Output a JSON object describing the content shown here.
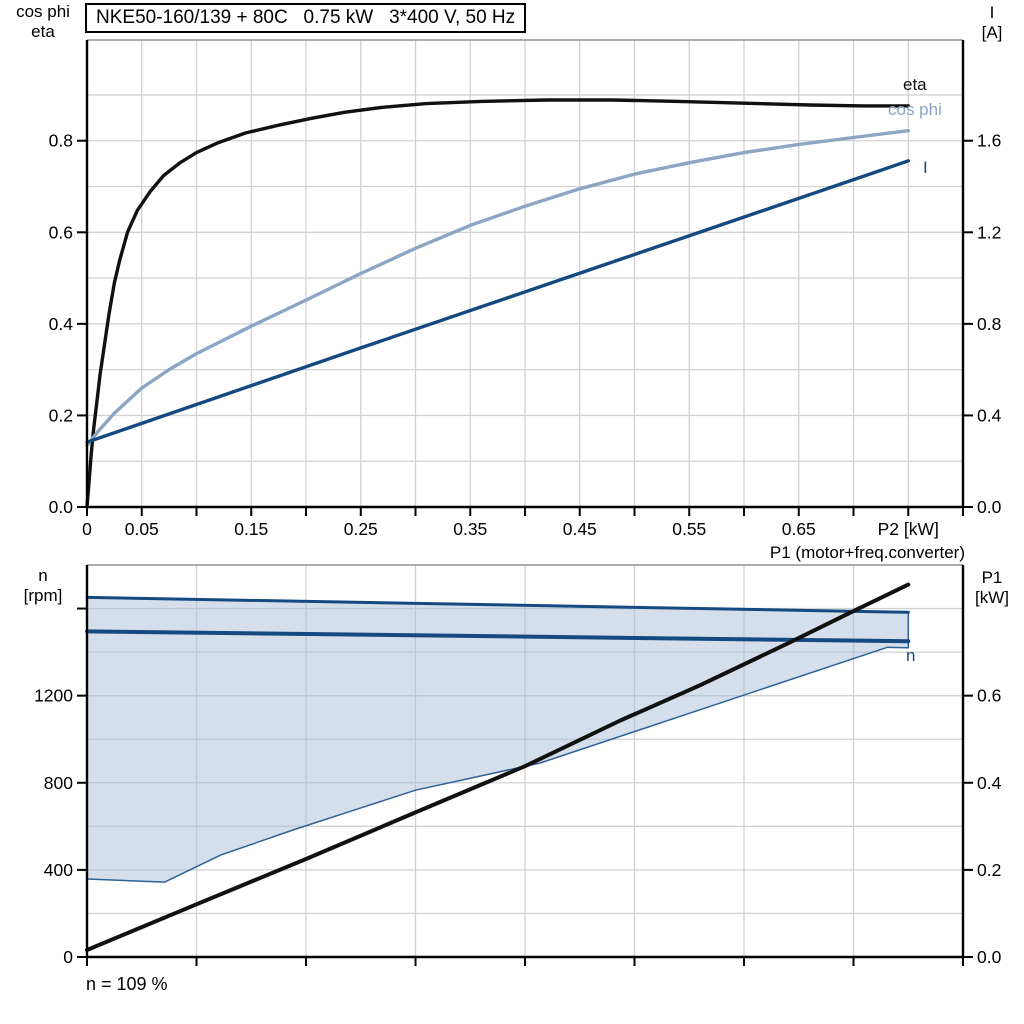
{
  "labels": {
    "axis_topleft_line1": "cos phi",
    "axis_topleft_line2": "eta",
    "axis_topright_line1": "I",
    "axis_topright_line2": "[A]",
    "axis_bottomleft_line1": "n",
    "axis_bottomleft_line2": "[rpm]",
    "axis_bottomright_line1": "P1",
    "axis_bottomright_line2": "[kW]",
    "p1_curve_title": "P1 (motor+freq.converter)",
    "footer_speed": "n = 109 %",
    "curve_label_eta": "eta",
    "curve_label_cosphi": "cos phi",
    "curve_label_current": "I",
    "curve_label_n": "n"
  },
  "title_box": {
    "text": "NKE50-160/139 + 80C   0.75 kW   3*400 V, 50 Hz"
  },
  "colors": {
    "black_curve": "#111111",
    "dark_blue": "#154980",
    "light_blue": "#8ba5c4",
    "band_fill": "rgba(165,188,214,0.48)",
    "band_stroke": "#2d6195",
    "grid": "#d2d2d2",
    "axis": "#000000",
    "top_border": "#909090"
  },
  "chart_data": [
    {
      "name": "motor-performance-chart",
      "type": "line",
      "title": "NKE50-160/139 + 80C   0.75 kW   3*400 V, 50 Hz",
      "xlabel": "P2 [kW]",
      "x_axis": {
        "range": [
          0,
          0.8
        ],
        "grid": [
          0.05,
          0.1,
          0.15,
          0.2,
          0.25,
          0.3,
          0.35,
          0.4,
          0.45,
          0.5,
          0.55,
          0.6,
          0.65,
          0.7,
          0.75
        ],
        "ticks": [
          0,
          0.05,
          0.1,
          0.15,
          0.2,
          0.25,
          0.3,
          0.35,
          0.4,
          0.45,
          0.5,
          0.55,
          0.6,
          0.65,
          0.7,
          0.75,
          0.8
        ],
        "tick_labels": [
          {
            "v": 0,
            "t": "0"
          },
          {
            "v": 0.05,
            "t": "0.05"
          },
          {
            "v": 0.15,
            "t": "0.15"
          },
          {
            "v": 0.25,
            "t": "0.25"
          },
          {
            "v": 0.35,
            "t": "0.35"
          },
          {
            "v": 0.45,
            "t": "0.45"
          },
          {
            "v": 0.55,
            "t": "0.55"
          },
          {
            "v": 0.65,
            "t": "0.65"
          },
          {
            "v": 0.75,
            "t": "P2 [kW]"
          }
        ]
      },
      "left_axis": {
        "label": "cos phi / eta",
        "range": [
          0,
          1.02
        ],
        "grid": [
          0.1,
          0.2,
          0.3,
          0.4,
          0.5,
          0.6,
          0.7,
          0.8,
          0.9
        ],
        "ticks": [
          0,
          0.2,
          0.4,
          0.6,
          0.8
        ],
        "tick_labels": [
          {
            "v": 0,
            "t": "0.0"
          },
          {
            "v": 0.2,
            "t": "0.2"
          },
          {
            "v": 0.4,
            "t": "0.4"
          },
          {
            "v": 0.6,
            "t": "0.6"
          },
          {
            "v": 0.8,
            "t": "0.8"
          }
        ]
      },
      "right_axis": {
        "label": "I [A]",
        "range": [
          0,
          2.04
        ],
        "ticks": [
          0,
          0.4,
          0.8,
          1.2,
          1.6
        ],
        "tick_labels": [
          {
            "v": 0,
            "t": "0.0"
          },
          {
            "v": 0.4,
            "t": "0.4"
          },
          {
            "v": 0.8,
            "t": "0.8"
          },
          {
            "v": 1.2,
            "t": "1.2"
          },
          {
            "v": 1.6,
            "t": "1.6"
          }
        ]
      },
      "series": [
        {
          "name": "eta",
          "axis": "left",
          "color": "#111111",
          "width": 3.4,
          "points": [
            [
              0,
              0
            ],
            [
              0.002,
              0.06
            ],
            [
              0.004,
              0.12
            ],
            [
              0.006,
              0.17
            ],
            [
              0.009,
              0.23
            ],
            [
              0.012,
              0.29
            ],
            [
              0.016,
              0.355
            ],
            [
              0.02,
              0.42
            ],
            [
              0.025,
              0.49
            ],
            [
              0.03,
              0.54
            ],
            [
              0.037,
              0.6
            ],
            [
              0.046,
              0.648
            ],
            [
              0.058,
              0.69
            ],
            [
              0.07,
              0.724
            ],
            [
              0.085,
              0.752
            ],
            [
              0.1,
              0.774
            ],
            [
              0.12,
              0.796
            ],
            [
              0.145,
              0.817
            ],
            [
              0.175,
              0.834
            ],
            [
              0.205,
              0.849
            ],
            [
              0.235,
              0.862
            ],
            [
              0.27,
              0.873
            ],
            [
              0.31,
              0.881
            ],
            [
              0.36,
              0.886
            ],
            [
              0.42,
              0.889
            ],
            [
              0.48,
              0.889
            ],
            [
              0.54,
              0.886
            ],
            [
              0.6,
              0.882
            ],
            [
              0.66,
              0.878
            ],
            [
              0.71,
              0.876
            ],
            [
              0.75,
              0.876
            ]
          ]
        },
        {
          "name": "cos phi",
          "axis": "left",
          "color": "#8ba5c4",
          "width": 3.4,
          "points": [
            [
              0,
              0.135
            ],
            [
              0.01,
              0.165
            ],
            [
              0.025,
              0.205
            ],
            [
              0.05,
              0.26
            ],
            [
              0.075,
              0.3
            ],
            [
              0.1,
              0.335
            ],
            [
              0.15,
              0.395
            ],
            [
              0.2,
              0.452
            ],
            [
              0.25,
              0.51
            ],
            [
              0.3,
              0.565
            ],
            [
              0.35,
              0.615
            ],
            [
              0.4,
              0.657
            ],
            [
              0.45,
              0.695
            ],
            [
              0.5,
              0.727
            ],
            [
              0.55,
              0.752
            ],
            [
              0.6,
              0.774
            ],
            [
              0.65,
              0.792
            ],
            [
              0.7,
              0.807
            ],
            [
              0.75,
              0.822
            ]
          ]
        },
        {
          "name": "I",
          "axis": "right",
          "color": "#154980",
          "width": 3.4,
          "points": [
            [
              0,
              0.283
            ],
            [
              0.25,
              0.695
            ],
            [
              0.5,
              1.103
            ],
            [
              0.75,
              1.512
            ]
          ]
        }
      ]
    },
    {
      "name": "speed-power-chart",
      "type": "line+area",
      "title": "P1 (motor+freq.converter)",
      "xlabel": "",
      "x_axis": {
        "range": [
          0,
          0.8
        ],
        "grid": [
          0.1,
          0.2,
          0.3,
          0.4,
          0.5,
          0.6,
          0.7
        ],
        "ticks": [
          0,
          0.1,
          0.2,
          0.3,
          0.4,
          0.5,
          0.6,
          0.7,
          0.8
        ],
        "tick_labels": []
      },
      "left_axis": {
        "label": "n [rpm]",
        "range": [
          0,
          1800
        ],
        "grid": [
          200,
          400,
          600,
          800,
          1000,
          1200,
          1400,
          1600
        ],
        "ticks": [
          0,
          400,
          800,
          1200,
          1600
        ],
        "tick_labels": [
          {
            "v": 0,
            "t": "0"
          },
          {
            "v": 400,
            "t": "400"
          },
          {
            "v": 800,
            "t": "800"
          },
          {
            "v": 1200,
            "t": "1200"
          }
        ]
      },
      "right_axis": {
        "label": "P1 [kW]",
        "range": [
          0,
          0.9
        ],
        "ticks": [
          0,
          0.2,
          0.4,
          0.6
        ],
        "tick_labels": [
          {
            "v": 0,
            "t": "0.0"
          },
          {
            "v": 0.2,
            "t": "0.2"
          },
          {
            "v": 0.4,
            "t": "0.4"
          },
          {
            "v": 0.6,
            "t": "0.6"
          }
        ]
      },
      "series": [
        {
          "name": "speed-range-band",
          "type": "polygon",
          "axis": "left",
          "color": "#2d6195",
          "width": 1.5,
          "fill": "rgba(165,188,214,0.48)",
          "points": [
            [
              0,
              1651
            ],
            [
              0.375,
              1617
            ],
            [
              0.75,
              1583
            ],
            [
              0.75,
              1420
            ],
            [
              0.731,
              1422
            ],
            [
              0.414,
              891
            ],
            [
              0.3,
              766
            ],
            [
              0.249,
              683
            ],
            [
              0.188,
              583
            ],
            [
              0.122,
              468
            ],
            [
              0.071,
              344
            ],
            [
              0,
              358
            ]
          ]
        },
        {
          "name": "speed-range-top",
          "axis": "left",
          "color": "#154980",
          "width": 3,
          "points": [
            [
              0,
              1651
            ],
            [
              0.75,
              1583
            ]
          ]
        },
        {
          "name": "n",
          "axis": "left",
          "color": "#154980",
          "width": 4,
          "points": [
            [
              0,
              1495
            ],
            [
              0.75,
              1450
            ]
          ]
        },
        {
          "name": "P1 (motor+freq.converter)",
          "axis": "right",
          "color": "#111111",
          "width": 4,
          "points": [
            [
              0,
              0.016
            ],
            [
              0.1,
              0.121
            ],
            [
              0.2,
              0.225
            ],
            [
              0.3,
              0.332
            ],
            [
              0.4,
              0.438
            ],
            [
              0.487,
              0.543
            ],
            [
              0.56,
              0.624
            ],
            [
              0.64,
              0.72
            ],
            [
              0.703,
              0.798
            ],
            [
              0.75,
              0.855
            ]
          ]
        }
      ]
    }
  ]
}
